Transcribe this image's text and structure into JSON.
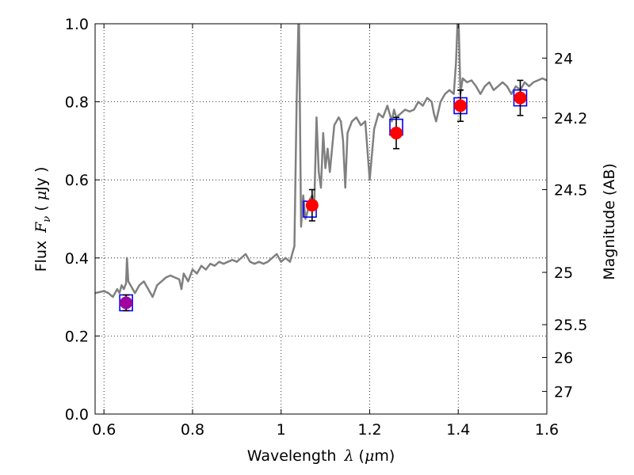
{
  "chart_data": {
    "type": "scatter",
    "xlabel": {
      "prefix": "Wavelength",
      "symbol": "λ",
      "unit_open": " (",
      "unit_mu": "μ",
      "unit_rest": "m)"
    },
    "ylabel": {
      "prefix": "Flux",
      "symbol": "F",
      "subscript": "ν",
      "unit_open": " ( ",
      "unit_mu": "μ",
      "unit_rest": "Jy )"
    },
    "y2label": "Magnitude (AB)",
    "xlim": [
      0.58,
      1.6
    ],
    "ylim": [
      0.0,
      1.0
    ],
    "grid": true,
    "x_ticks": [
      {
        "value": 0.6,
        "label": "0.6"
      },
      {
        "value": 0.8,
        "label": "0.8"
      },
      {
        "value": 1.0,
        "label": "1"
      },
      {
        "value": 1.2,
        "label": "1.2"
      },
      {
        "value": 1.4,
        "label": "1.4"
      },
      {
        "value": 1.6,
        "label": "1.6"
      }
    ],
    "y_ticks": [
      {
        "value": 0.0,
        "label": "0.0"
      },
      {
        "value": 0.2,
        "label": "0.2"
      },
      {
        "value": 0.4,
        "label": "0.4"
      },
      {
        "value": 0.6,
        "label": "0.6"
      },
      {
        "value": 0.8,
        "label": "0.8"
      },
      {
        "value": 1.0,
        "label": "1.0"
      }
    ],
    "y2_ticks": [
      {
        "label": "24",
        "flux": 0.912
      },
      {
        "label": "24.2",
        "flux": 0.759
      },
      {
        "label": "24.5",
        "flux": 0.575
      },
      {
        "label": "25",
        "flux": 0.363
      },
      {
        "label": "25.5",
        "flux": 0.229
      },
      {
        "label": "26",
        "flux": 0.145
      },
      {
        "label": "27",
        "flux": 0.058
      }
    ],
    "series": [
      {
        "kind": "spectrum",
        "color": "#808080",
        "x": [
          0.58,
          0.6,
          0.61,
          0.62,
          0.63,
          0.635,
          0.64,
          0.645,
          0.65,
          0.652,
          0.655,
          0.66,
          0.67,
          0.68,
          0.69,
          0.7,
          0.71,
          0.72,
          0.73,
          0.74,
          0.75,
          0.76,
          0.77,
          0.775,
          0.78,
          0.79,
          0.8,
          0.81,
          0.82,
          0.83,
          0.84,
          0.85,
          0.86,
          0.87,
          0.88,
          0.89,
          0.9,
          0.91,
          0.92,
          0.93,
          0.94,
          0.95,
          0.96,
          0.97,
          0.98,
          0.99,
          1.0,
          1.01,
          1.02,
          1.03,
          1.035,
          1.04,
          1.045,
          1.05,
          1.055,
          1.06,
          1.065,
          1.07,
          1.075,
          1.08,
          1.085,
          1.09,
          1.095,
          1.1,
          1.105,
          1.11,
          1.12,
          1.13,
          1.135,
          1.14,
          1.145,
          1.15,
          1.16,
          1.17,
          1.18,
          1.19,
          1.2,
          1.21,
          1.22,
          1.23,
          1.24,
          1.25,
          1.255,
          1.26,
          1.27,
          1.28,
          1.29,
          1.3,
          1.31,
          1.32,
          1.33,
          1.34,
          1.345,
          1.35,
          1.36,
          1.37,
          1.38,
          1.39,
          1.395,
          1.4,
          1.405,
          1.41,
          1.42,
          1.43,
          1.44,
          1.45,
          1.46,
          1.47,
          1.48,
          1.49,
          1.5,
          1.51,
          1.52,
          1.53,
          1.54,
          1.55,
          1.56,
          1.57,
          1.58,
          1.59,
          1.6
        ],
        "y": [
          0.31,
          0.315,
          0.31,
          0.3,
          0.32,
          0.31,
          0.33,
          0.32,
          0.335,
          0.4,
          0.34,
          0.33,
          0.31,
          0.33,
          0.34,
          0.32,
          0.3,
          0.33,
          0.34,
          0.35,
          0.355,
          0.35,
          0.345,
          0.32,
          0.36,
          0.34,
          0.37,
          0.36,
          0.38,
          0.37,
          0.385,
          0.38,
          0.39,
          0.385,
          0.39,
          0.395,
          0.39,
          0.4,
          0.41,
          0.39,
          0.385,
          0.39,
          0.385,
          0.39,
          0.4,
          0.41,
          0.39,
          0.4,
          0.39,
          0.43,
          0.8,
          1.05,
          0.48,
          0.56,
          0.5,
          0.52,
          0.55,
          0.56,
          0.54,
          0.76,
          0.62,
          0.58,
          0.72,
          0.63,
          0.68,
          0.62,
          0.74,
          0.76,
          0.75,
          0.7,
          0.58,
          0.72,
          0.75,
          0.76,
          0.74,
          0.75,
          0.6,
          0.73,
          0.77,
          0.76,
          0.79,
          0.75,
          0.78,
          0.76,
          0.77,
          0.78,
          0.775,
          0.78,
          0.8,
          0.79,
          0.81,
          0.8,
          0.77,
          0.75,
          0.8,
          0.82,
          0.83,
          0.82,
          0.9,
          1.05,
          0.82,
          0.86,
          0.85,
          0.855,
          0.84,
          0.82,
          0.84,
          0.85,
          0.83,
          0.84,
          0.85,
          0.84,
          0.82,
          0.84,
          0.83,
          0.85,
          0.84,
          0.85,
          0.855,
          0.86,
          0.855
        ]
      },
      {
        "kind": "model-photometry",
        "marker": "square",
        "color": "#0000ff",
        "x": [
          0.65,
          1.065,
          1.26,
          1.405,
          1.54
        ],
        "y": [
          0.285,
          0.525,
          0.735,
          0.79,
          0.81
        ]
      },
      {
        "kind": "observed-photometry",
        "marker": "circle",
        "color": "#ff0000",
        "x": [
          0.65,
          1.07,
          1.26,
          1.405,
          1.54
        ],
        "y": [
          0.285,
          0.535,
          0.72,
          0.79,
          0.81
        ],
        "yerr": [
          0.02,
          0.04,
          0.04,
          0.04,
          0.045
        ],
        "point_colors": [
          "#a000a0",
          "#ff0000",
          "#ff0000",
          "#ff0000",
          "#ff0000"
        ]
      }
    ]
  }
}
